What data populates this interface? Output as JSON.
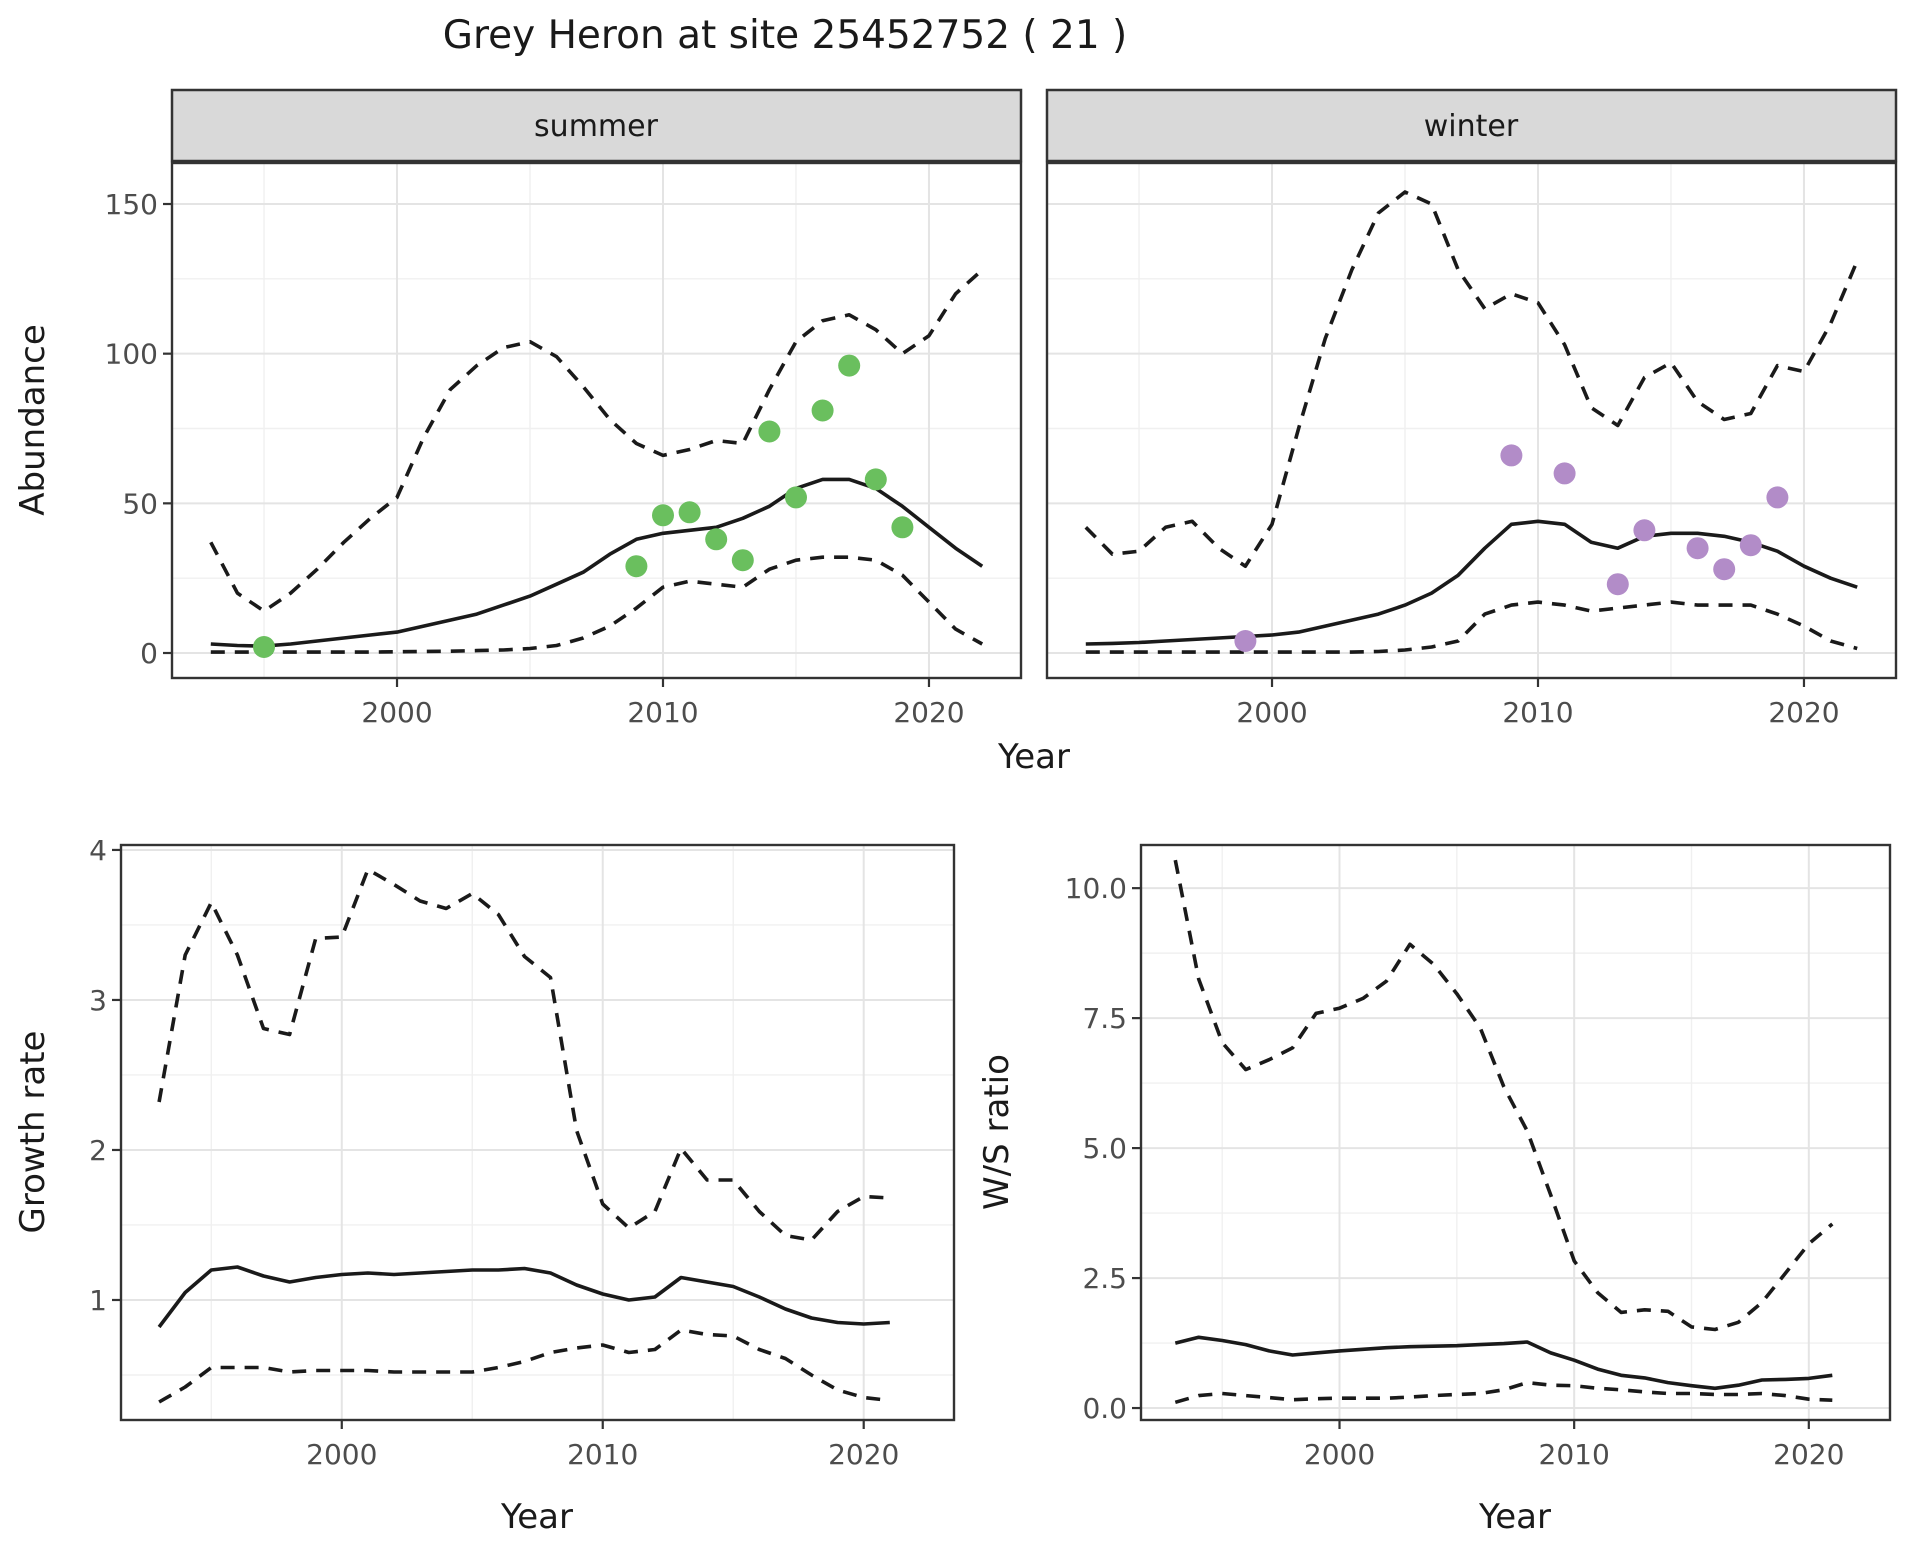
{
  "title": "Grey Heron at site 25452752 ( 21 )",
  "axes": {
    "x_label": "Year"
  },
  "colors": {
    "summer_points": "#6abf5e",
    "winter_points": "#b28cc8",
    "line": "#1a1a1a",
    "strip_fill": "#d9d9d9",
    "panel_border": "#333333",
    "grid_major": "#e4e4e4",
    "grid_minor": "#f0f0f0",
    "tick_label": "#4d4d4d"
  },
  "chart_data": [
    {
      "id": "abundance-summer",
      "type": "line",
      "facet": "summer",
      "ylabel": "Abundance",
      "xlabel": "Year",
      "xlim": [
        1991.54,
        2023.46
      ],
      "ylim": [
        -8.35,
        163.7
      ],
      "x_ticks": [
        {
          "v": 2000,
          "label": "2000"
        },
        {
          "v": 2010,
          "label": "2010"
        },
        {
          "v": 2020,
          "label": "2020"
        }
      ],
      "x_minor": [
        1995,
        2005,
        2015
      ],
      "y_ticks": [
        {
          "v": 0,
          "label": "0"
        },
        {
          "v": 50,
          "label": "50"
        },
        {
          "v": 100,
          "label": "100"
        },
        {
          "v": 150,
          "label": "150"
        }
      ],
      "y_minor": [
        25,
        75,
        125
      ],
      "show_y_tick_labels": true,
      "years": [
        1993,
        1994,
        1995,
        1996,
        1997,
        1998,
        1999,
        2000,
        2001,
        2002,
        2003,
        2004,
        2005,
        2006,
        2007,
        2008,
        2009,
        2010,
        2011,
        2012,
        2013,
        2014,
        2015,
        2016,
        2017,
        2018,
        2019,
        2020,
        2021,
        2022
      ],
      "series": [
        {
          "name": "fit",
          "style": "solid",
          "values": [
            3,
            2.5,
            2.3,
            3,
            4,
            5,
            6,
            7,
            9,
            11,
            13,
            16,
            19,
            23,
            27,
            33,
            38,
            40,
            41,
            42,
            45,
            49,
            55,
            58,
            58,
            55,
            49,
            42,
            35,
            29
          ]
        },
        {
          "name": "upper_ci",
          "style": "dashed",
          "values": [
            37,
            20,
            14,
            20,
            28,
            37,
            45,
            52,
            72,
            88,
            96,
            102,
            104,
            99,
            89,
            78,
            70,
            66,
            68,
            71,
            70,
            88,
            104,
            111,
            113,
            108,
            100,
            106,
            120,
            128
          ]
        },
        {
          "name": "lower_ci",
          "style": "dashed",
          "values": [
            0.3,
            0.3,
            0.3,
            0.3,
            0.3,
            0.3,
            0.3,
            0.4,
            0.5,
            0.6,
            0.8,
            1,
            1.5,
            2.5,
            5,
            9,
            15,
            22,
            24,
            23,
            22,
            28,
            31,
            32,
            32,
            31,
            26,
            17,
            8,
            3
          ]
        }
      ],
      "points": {
        "name": "summer-observations",
        "color": "#6abf5e",
        "data": [
          [
            1995,
            2
          ],
          [
            2009,
            29
          ],
          [
            2010,
            46
          ],
          [
            2011,
            47
          ],
          [
            2012,
            38
          ],
          [
            2013,
            31
          ],
          [
            2014,
            74
          ],
          [
            2015,
            52
          ],
          [
            2016,
            81
          ],
          [
            2017,
            96
          ],
          [
            2018,
            58
          ],
          [
            2019,
            42
          ]
        ]
      }
    },
    {
      "id": "abundance-winter",
      "type": "line",
      "facet": "winter",
      "ylabel": "Abundance",
      "xlabel": "Year",
      "xlim": [
        1991.54,
        2023.46
      ],
      "ylim": [
        -8.35,
        163.7
      ],
      "x_ticks": [
        {
          "v": 2000,
          "label": "2000"
        },
        {
          "v": 2010,
          "label": "2010"
        },
        {
          "v": 2020,
          "label": "2020"
        }
      ],
      "x_minor": [
        1995,
        2005,
        2015
      ],
      "y_ticks": [
        {
          "v": 0,
          "label": "0"
        },
        {
          "v": 50,
          "label": "50"
        },
        {
          "v": 100,
          "label": "100"
        },
        {
          "v": 150,
          "label": "150"
        }
      ],
      "y_minor": [
        25,
        75,
        125
      ],
      "show_y_tick_labels": false,
      "years": [
        1993,
        1994,
        1995,
        1996,
        1997,
        1998,
        1999,
        2000,
        2001,
        2002,
        2003,
        2004,
        2005,
        2006,
        2007,
        2008,
        2009,
        2010,
        2011,
        2012,
        2013,
        2014,
        2015,
        2016,
        2017,
        2018,
        2019,
        2020,
        2021,
        2022
      ],
      "series": [
        {
          "name": "fit",
          "style": "solid",
          "values": [
            3,
            3.2,
            3.5,
            4,
            4.5,
            5,
            5.5,
            6,
            7,
            9,
            11,
            13,
            16,
            20,
            26,
            35,
            43,
            44,
            43,
            37,
            35,
            39,
            40,
            40,
            39,
            37,
            34,
            29,
            25,
            22
          ]
        },
        {
          "name": "upper_ci",
          "style": "dashed",
          "values": [
            42,
            33,
            34,
            42,
            44,
            35,
            29,
            43,
            75,
            105,
            128,
            147,
            154,
            150,
            128,
            115,
            120,
            117,
            103,
            82,
            76,
            92,
            97,
            84,
            78,
            80,
            96,
            94,
            110,
            131
          ]
        },
        {
          "name": "lower_ci",
          "style": "dashed",
          "values": [
            0.3,
            0.3,
            0.3,
            0.3,
            0.3,
            0.3,
            0.3,
            0.3,
            0.3,
            0.3,
            0.3,
            0.5,
            1,
            2,
            4,
            13,
            16,
            17,
            16,
            14,
            15,
            16,
            17,
            16,
            16,
            16,
            13,
            9,
            4,
            1.5
          ]
        }
      ],
      "points": {
        "name": "winter-observations",
        "color": "#b28cc8",
        "data": [
          [
            1999,
            4
          ],
          [
            2009,
            66
          ],
          [
            2011,
            60
          ],
          [
            2013,
            23
          ],
          [
            2014,
            41
          ],
          [
            2016,
            35
          ],
          [
            2017,
            28
          ],
          [
            2018,
            36
          ],
          [
            2019,
            52
          ]
        ]
      }
    },
    {
      "id": "growth-rate",
      "type": "line",
      "facet": null,
      "ylabel": "Growth rate",
      "xlabel": "Year",
      "xlim": [
        1991.54,
        2023.46
      ],
      "ylim": [
        0.2,
        4.033
      ],
      "x_ticks": [
        {
          "v": 2000,
          "label": "2000"
        },
        {
          "v": 2010,
          "label": "2010"
        },
        {
          "v": 2020,
          "label": "2020"
        }
      ],
      "x_minor": [
        1995,
        2005,
        2015
      ],
      "y_ticks": [
        {
          "v": 1,
          "label": "1"
        },
        {
          "v": 2,
          "label": "2"
        },
        {
          "v": 3,
          "label": "3"
        },
        {
          "v": 4,
          "label": "4"
        }
      ],
      "y_minor": [
        0.5,
        1.5,
        2.5,
        3.5
      ],
      "show_y_tick_labels": true,
      "years": [
        1993,
        1994,
        1995,
        1996,
        1997,
        1998,
        1999,
        2000,
        2001,
        2002,
        2003,
        2004,
        2005,
        2006,
        2007,
        2008,
        2009,
        2010,
        2011,
        2012,
        2013,
        2014,
        2015,
        2016,
        2017,
        2018,
        2019,
        2020,
        2021
      ],
      "series": [
        {
          "name": "fit",
          "style": "solid",
          "values": [
            0.82,
            1.05,
            1.2,
            1.22,
            1.16,
            1.12,
            1.15,
            1.17,
            1.18,
            1.17,
            1.18,
            1.19,
            1.2,
            1.2,
            1.21,
            1.18,
            1.1,
            1.04,
            1.0,
            1.02,
            1.15,
            1.12,
            1.09,
            1.02,
            0.94,
            0.88,
            0.85,
            0.84,
            0.85
          ]
        },
        {
          "name": "upper_ci",
          "style": "dashed",
          "values": [
            2.32,
            3.3,
            3.65,
            3.3,
            2.81,
            2.77,
            3.41,
            3.42,
            3.87,
            3.77,
            3.66,
            3.61,
            3.71,
            3.57,
            3.29,
            3.15,
            2.13,
            1.64,
            1.48,
            1.59,
            2.01,
            1.8,
            1.8,
            1.59,
            1.43,
            1.4,
            1.59,
            1.69,
            1.68
          ]
        },
        {
          "name": "lower_ci",
          "style": "dashed",
          "values": [
            0.32,
            0.42,
            0.55,
            0.55,
            0.55,
            0.52,
            0.53,
            0.53,
            0.53,
            0.52,
            0.52,
            0.52,
            0.52,
            0.55,
            0.59,
            0.65,
            0.68,
            0.7,
            0.65,
            0.67,
            0.8,
            0.77,
            0.76,
            0.67,
            0.61,
            0.5,
            0.4,
            0.35,
            0.33
          ]
        }
      ],
      "points": null
    },
    {
      "id": "ws-ratio",
      "type": "line",
      "facet": null,
      "ylabel": "W/S ratio",
      "xlabel": "Year",
      "xlim": [
        1991.54,
        2023.46
      ],
      "ylim": [
        -0.23,
        10.83
      ],
      "x_ticks": [
        {
          "v": 2000,
          "label": "2000"
        },
        {
          "v": 2010,
          "label": "2010"
        },
        {
          "v": 2020,
          "label": "2020"
        }
      ],
      "x_minor": [
        1995,
        2005,
        2015
      ],
      "y_ticks": [
        {
          "v": 0,
          "label": "0.0"
        },
        {
          "v": 2.5,
          "label": "2.5"
        },
        {
          "v": 5,
          "label": "5.0"
        },
        {
          "v": 7.5,
          "label": "7.5"
        },
        {
          "v": 10,
          "label": "10.0"
        }
      ],
      "y_minor": [
        1.25,
        3.75,
        6.25,
        8.75
      ],
      "show_y_tick_labels": true,
      "years": [
        1993,
        1994,
        1995,
        1996,
        1997,
        1998,
        1999,
        2000,
        2001,
        2002,
        2003,
        2004,
        2005,
        2006,
        2007,
        2008,
        2009,
        2010,
        2011,
        2012,
        2013,
        2014,
        2015,
        2016,
        2017,
        2018,
        2019,
        2020,
        2021
      ],
      "series": [
        {
          "name": "fit",
          "style": "solid",
          "values": [
            1.25,
            1.36,
            1.3,
            1.22,
            1.1,
            1.02,
            1.06,
            1.1,
            1.13,
            1.16,
            1.18,
            1.19,
            1.2,
            1.22,
            1.24,
            1.27,
            1.06,
            0.92,
            0.75,
            0.63,
            0.58,
            0.49,
            0.43,
            0.38,
            0.44,
            0.54,
            0.55,
            0.57,
            0.63
          ]
        },
        {
          "name": "upper_ci",
          "style": "dashed",
          "values": [
            10.54,
            8.25,
            7.03,
            6.51,
            6.7,
            6.93,
            7.59,
            7.69,
            7.88,
            8.21,
            8.92,
            8.54,
            7.97,
            7.31,
            6.18,
            5.33,
            4.1,
            2.83,
            2.22,
            1.84,
            1.89,
            1.86,
            1.56,
            1.51,
            1.65,
            2.03,
            2.59,
            3.16,
            3.54
          ]
        },
        {
          "name": "lower_ci",
          "style": "dashed",
          "values": [
            0.11,
            0.24,
            0.28,
            0.24,
            0.2,
            0.16,
            0.18,
            0.19,
            0.19,
            0.19,
            0.21,
            0.24,
            0.26,
            0.28,
            0.35,
            0.49,
            0.44,
            0.43,
            0.38,
            0.35,
            0.31,
            0.28,
            0.28,
            0.26,
            0.26,
            0.28,
            0.24,
            0.17,
            0.15
          ]
        }
      ],
      "points": null
    }
  ]
}
